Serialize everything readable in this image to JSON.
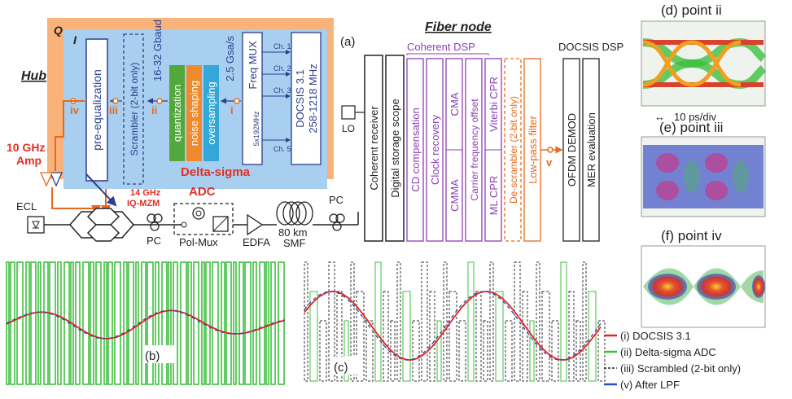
{
  "labels": {
    "q": "Q",
    "i": "I",
    "hub": "Hub",
    "fiber_node": "Fiber node",
    "panel_a": "(a)",
    "panel_b": "(b)",
    "panel_c": "(c)",
    "pre_eq": "pre-equalization",
    "scrambler": "Scrambler (2-bit only)",
    "baud": "16-32 Gbaud",
    "quantization": "quantization",
    "noise_shaping": "noise shaping",
    "oversampling": "oversampling",
    "delta_sigma": "Delta-sigma",
    "gsas": "2.5 Gsa/s",
    "freq_mux": "Freq MUX",
    "ch1": "Ch. 1",
    "ch2": "Ch. 2",
    "ch3": "Ch. 3",
    "ch5": "Ch. 5",
    "spacing": "5x192MHz",
    "docsis_box_line1": "DOCSIS 3.1",
    "docsis_box_line2": "258-1218 MHz",
    "pt_iv": "iv",
    "pt_iii": "iii",
    "pt_ii": "ii",
    "pt_i": "i",
    "pt_v": "v",
    "amp_line1": "10 GHz",
    "amp_line2": "Amp",
    "mzm_line1": "14 GHz",
    "mzm_line2": "IQ-MZM",
    "adc": "ADC",
    "ecl": "ECL",
    "pc1": "PC",
    "pc2": "PC",
    "polmux": "Pol-Mux",
    "edfa": "EDFA",
    "smf_line1": "80 km",
    "smf_line2": "SMF",
    "lo": "LO",
    "coherent_receiver": "Coherent receiver",
    "dso": "Digital storage scope",
    "coherent_dsp": "Coherent DSP",
    "cd_comp": "CD compensation",
    "clock_rec": "Clock recovery",
    "cmma": "CMMA",
    "cma": "CMA",
    "cfo": "Carrier frequency offset",
    "ml_cpr": "ML CPR",
    "viterbi_cpr": "Viterbi CPR",
    "descrambler": "De-scrambler (2-bit only)",
    "lpf": "Low-pass filter",
    "docsis_dsp": "DOCSIS DSP",
    "ofdm": "OFDM DEMOD",
    "mer": "MER evaluation",
    "eye_d": "(d) point ii",
    "eye_e": "(e) point iii",
    "eye_f": "(f) point iv",
    "scale": "10 ps/div"
  },
  "legend": [
    {
      "label": "(i) DOCSIS 3.1",
      "color": "#e8231c"
    },
    {
      "label": "(ii) Delta-sigma ADC",
      "color": "#3fbf3f"
    },
    {
      "label": "(iii) Scrambled (2-bit only)",
      "color": "#222222"
    },
    {
      "label": "(v) After LPF",
      "color": "#2b4fbf"
    }
  ],
  "colors": {
    "q_rail": "#f8b27a",
    "i_rail": "#a8cff0",
    "orange": "#e7691c",
    "purple": "#8e3fb4",
    "red_text": "#e03025",
    "navy": "#2b3f8c",
    "quant": "#52a83c",
    "noise": "#f08a2c",
    "overs": "#33a8d8"
  }
}
